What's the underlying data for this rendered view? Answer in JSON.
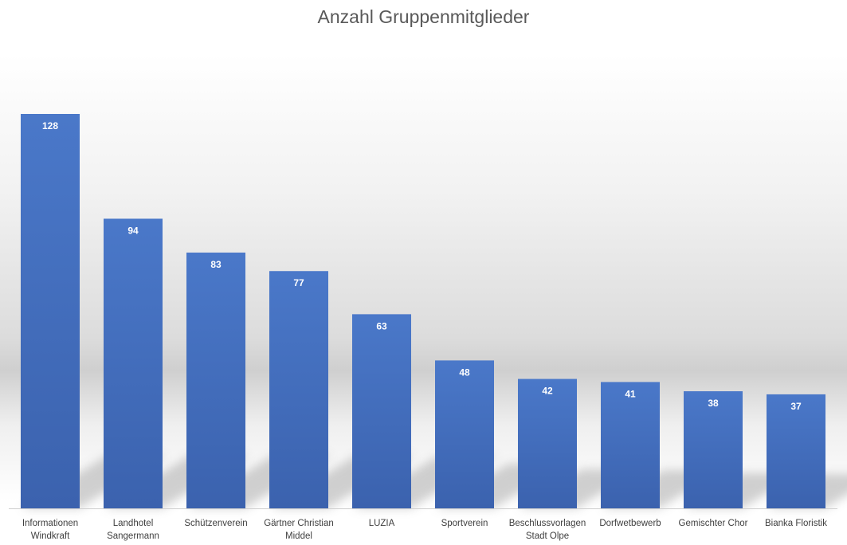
{
  "chart_data": {
    "type": "bar",
    "title": "Anzahl Gruppenmitglieder",
    "xlabel": "",
    "ylabel": "",
    "categories": [
      "Informationen Windkraft",
      "Landhotel Sangermann",
      "Schützenverein",
      "Gärtner Christian Middel",
      "LUZIA",
      "Sportverein",
      "Beschlussvorlagen Stadt Olpe",
      "Dorfwetbewerb",
      "Gemischter Chor",
      "Bianka Floristik"
    ],
    "category_lines": [
      [
        "Informationen",
        "Windkraft"
      ],
      [
        "Landhotel",
        "Sangermann"
      ],
      [
        "Schützenverein"
      ],
      [
        "Gärtner Christian",
        "Middel"
      ],
      [
        "LUZIA"
      ],
      [
        "Sportverein"
      ],
      [
        "Beschlussvorlagen",
        "Stadt Olpe"
      ],
      [
        "Dorfwetbewerb"
      ],
      [
        "Gemischter Chor"
      ],
      [
        "Bianka Floristik"
      ]
    ],
    "values": [
      128,
      94,
      83,
      77,
      63,
      48,
      42,
      41,
      38,
      37
    ],
    "ylim": [
      0,
      128
    ],
    "grid": false,
    "legend": "none",
    "bar_color": "#4472C4"
  }
}
